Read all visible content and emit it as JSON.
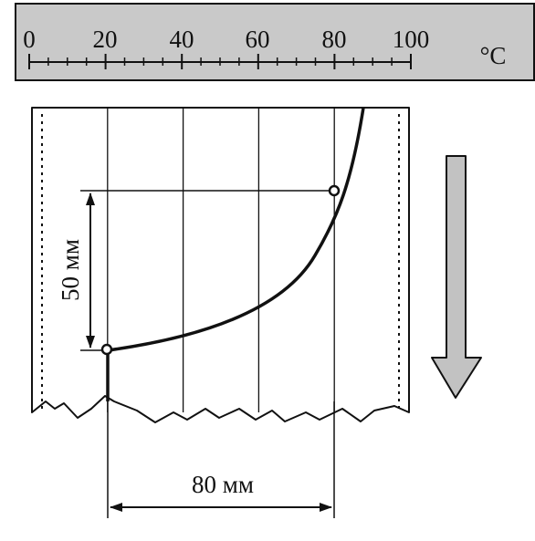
{
  "scale": {
    "ticks": [
      "0",
      "20",
      "40",
      "60",
      "80",
      "100"
    ],
    "unit": "°C",
    "min": 0,
    "max": 100,
    "minor_step": 5
  },
  "chart": {
    "grid_values": [
      20,
      40,
      60,
      80
    ],
    "marked_start_value": 20,
    "marked_end_value": 80
  },
  "dimensions": {
    "vertical": "50 мм",
    "horizontal": "80 мм"
  },
  "colors": {
    "scale_bg": "#c9c9c9",
    "ink": "#111111",
    "arrow_fill": "#c2c2c2"
  },
  "icons": {
    "direction": "down-arrow-icon"
  }
}
